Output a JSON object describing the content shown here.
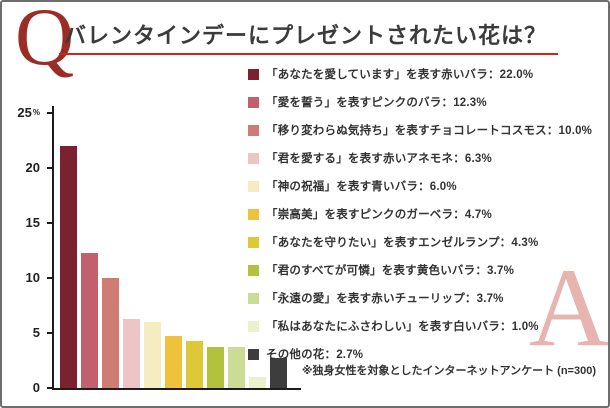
{
  "page": {
    "q_mark": "Q",
    "a_mark": "A",
    "title": "バレンタインデーにプレゼントされたい花は？",
    "footnote": "※独身女性を対象としたインターネットアンケート (n=300)"
  },
  "chart_data": {
    "type": "bar",
    "title": "バレンタインデーにプレゼントされたい花は？",
    "xlabel": "",
    "ylabel": "%",
    "y_unit": "%",
    "ylim": [
      0,
      25
    ],
    "yticks": [
      0,
      5,
      10,
      15,
      20,
      25
    ],
    "grid": false,
    "legend_position": "right",
    "categories": [
      "赤いバラ",
      "ピンクのバラ",
      "チョコレートコスモス",
      "赤いアネモネ",
      "青いバラ",
      "ピンクのガーベラ",
      "エンゼルランプ",
      "黄色いバラ",
      "赤いチューリップ",
      "白いバラ",
      "その他の花"
    ],
    "values": [
      22.0,
      12.3,
      10.0,
      6.3,
      6.0,
      4.7,
      4.3,
      3.7,
      3.7,
      1.0,
      2.7
    ],
    "colors": [
      "#7b2230",
      "#c2606e",
      "#cf7d74",
      "#edc5c5",
      "#f6ecc2",
      "#efc23b",
      "#ddc938",
      "#b2c23c",
      "#cadc96",
      "#ebf0cd",
      "#3d3d3d"
    ],
    "legend": [
      {
        "label": "「あなたを愛しています」を表す赤いバラ：22.0%",
        "color": "#7b2230"
      },
      {
        "label": "「愛を誓う」を表すピンクのバラ：12.3%",
        "color": "#c2606e"
      },
      {
        "label": "「移り変わらぬ気持ち」を表すチョコレートコスモス：10.0%",
        "color": "#cf7d74"
      },
      {
        "label": "「君を愛する」を表す赤いアネモネ：6.3%",
        "color": "#edc5c5"
      },
      {
        "label": "「神の祝福」を表す青いバラ：6.0%",
        "color": "#f6ecc2"
      },
      {
        "label": "「崇高美」を表すピンクのガーベラ：4.7%",
        "color": "#efc23b"
      },
      {
        "label": "「あなたを守りたい」を表すエンゼルランプ：4.3%",
        "color": "#ddc938"
      },
      {
        "label": "「君のすべてが可憐」を表す黄色いバラ：3.7%",
        "color": "#b2c23c"
      },
      {
        "label": "「永遠の愛」を表す赤いチューリップ：3.7%",
        "color": "#cadc96"
      },
      {
        "label": "「私はあなたにふさわしい」を表す白いバラ：1.0%",
        "color": "#ebf0cd"
      },
      {
        "label": "その他の花：2.7%",
        "color": "#3d3d3d"
      }
    ]
  }
}
